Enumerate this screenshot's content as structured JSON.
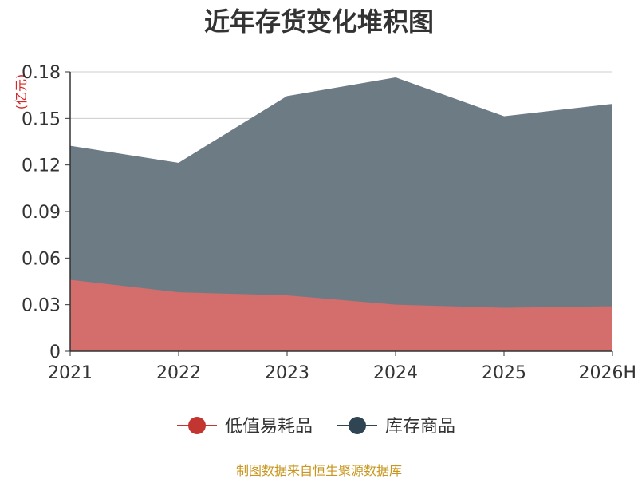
{
  "chart_data": {
    "type": "area",
    "stacked": true,
    "title": "近年存货变化堆积图",
    "unit_label": "(亿元)",
    "categories": [
      "2021",
      "2022",
      "2023",
      "2024",
      "2025",
      "2026H"
    ],
    "ylim": [
      0,
      0.18
    ],
    "yticks": [
      0,
      0.03,
      0.06,
      0.09,
      0.12,
      0.15,
      0.18
    ],
    "ytick_labels": [
      "0",
      "0.03",
      "0.06",
      "0.09",
      "0.12",
      "0.15",
      "0.18"
    ],
    "series": [
      {
        "name": "低值易耗品",
        "values": [
          0.046,
          0.038,
          0.036,
          0.03,
          0.028,
          0.029
        ],
        "color": "#c23531",
        "fill": "#d46e6c"
      },
      {
        "name": "库存商品",
        "values": [
          0.086,
          0.083,
          0.128,
          0.146,
          0.123,
          0.13
        ],
        "color": "#2f4554",
        "fill": "#6d7b85"
      }
    ],
    "grid": true,
    "legend_position": "bottom"
  },
  "source_text": "制图数据来自恒生聚源数据库"
}
